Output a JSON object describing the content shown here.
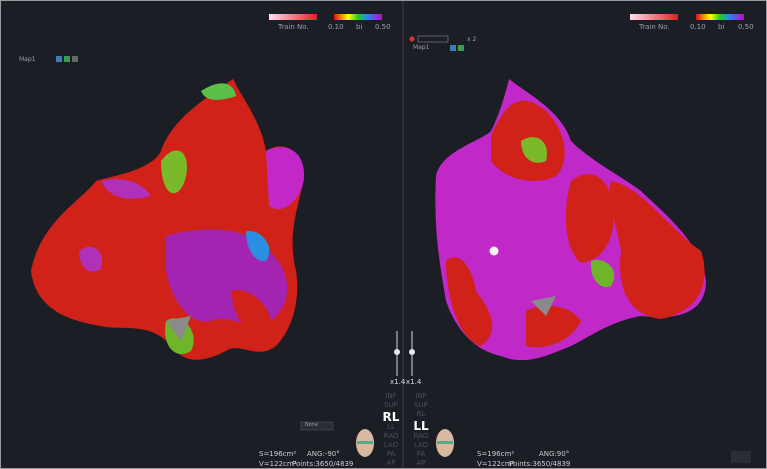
{
  "panels": [
    {
      "map_label": "Map1",
      "legend": {
        "train_label": "Train No.",
        "min_label": "0.10",
        "bi_label": "bi",
        "max_label": "0.50"
      },
      "zoom": "x1.4",
      "views": [
        {
          "label": "INF",
          "active": false
        },
        {
          "label": "SUP",
          "active": false
        },
        {
          "label": "RL",
          "active": true
        },
        {
          "label": "LL",
          "active": false
        },
        {
          "label": "RAO",
          "active": false
        },
        {
          "label": "LAO",
          "active": false
        },
        {
          "label": "PA",
          "active": false
        },
        {
          "label": "AP",
          "active": false
        }
      ],
      "readouts": {
        "surface": "S=196cm²",
        "angle": "ANG:-90°",
        "volume": "V=122cm³",
        "points": "Points:3650/4839"
      },
      "dropdown": "None"
    },
    {
      "map_label": "Map1",
      "toolbar_count": "x 2",
      "legend": {
        "train_label": "Train No.",
        "min_label": "0.10",
        "bi_label": "bi",
        "max_label": "0.50"
      },
      "zoom": "x1.4",
      "views": [
        {
          "label": "INF",
          "active": false
        },
        {
          "label": "SUP",
          "active": false
        },
        {
          "label": "RL",
          "active": false
        },
        {
          "label": "LL",
          "active": true
        },
        {
          "label": "RAO",
          "active": false
        },
        {
          "label": "LAO",
          "active": false
        },
        {
          "label": "PA",
          "active": false
        },
        {
          "label": "AP",
          "active": false
        }
      ],
      "readouts": {
        "surface": "S=196cm²",
        "angle": "ANG:90°",
        "volume": "V=122cm³",
        "points": "Points:3650/4839"
      }
    }
  ]
}
